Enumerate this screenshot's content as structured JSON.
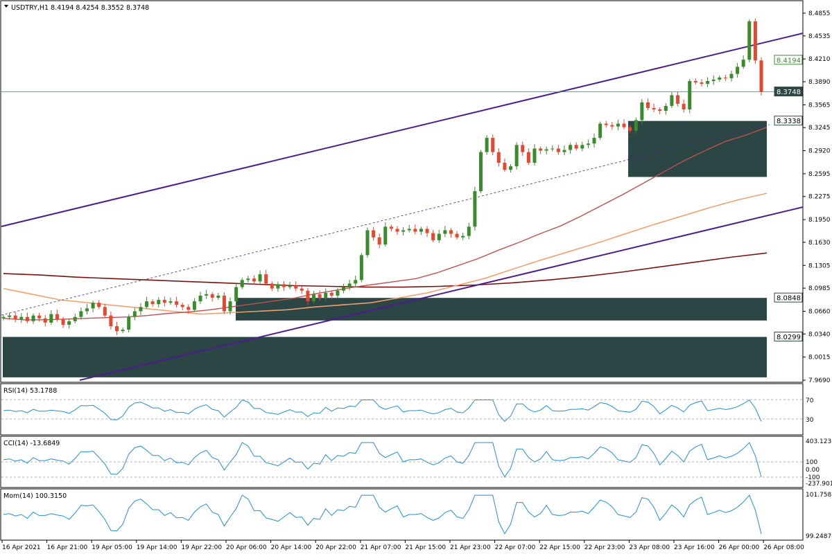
{
  "chart_data": {
    "type": "candlestick",
    "symbol": "USDTRY,H1",
    "header": {
      "open": "8.4194",
      "high": "8.4254",
      "low": "8.3552",
      "close": "8.3748"
    },
    "price_axis": {
      "ylim": [
        7.969,
        8.4855
      ],
      "ticks": [
        "8.4855",
        "8.4535",
        "8.4210",
        "8.3890",
        "8.3565",
        "8.3245",
        "8.2920",
        "8.2595",
        "8.2275",
        "8.1950",
        "8.1630",
        "8.1305",
        "8.0985",
        "8.0660",
        "8.0340",
        "8.0015",
        "7.9690"
      ]
    },
    "price_labels": [
      {
        "text": "8.4194",
        "value": 8.4194,
        "style": "green"
      },
      {
        "text": "8.3748",
        "value": 8.3748,
        "style": "dark"
      },
      {
        "text": "8.3338",
        "value": 8.3338,
        "style": "plain"
      },
      {
        "text": "8.0848",
        "value": 8.0848,
        "style": "plain"
      },
      {
        "text": "8.0299",
        "value": 8.0299,
        "style": "plain"
      }
    ],
    "time_axis": [
      "16 Apr 2021",
      "16 Apr 21:00",
      "19 Apr 05:00",
      "19 Apr 14:00",
      "19 Apr 22:00",
      "20 Apr 06:00",
      "20 Apr 14:00",
      "20 Apr 22:00",
      "21 Apr 07:00",
      "21 Apr 15:00",
      "21 Apr 23:00",
      "22 Apr 07:00",
      "22 Apr 15:00",
      "22 Apr 23:00",
      "23 Apr 08:00",
      "23 Apr 16:00",
      "26 Apr 00:00",
      "26 Apr 08:00"
    ],
    "candles_close": [
      8.058,
      8.06,
      8.055,
      8.058,
      8.052,
      8.06,
      8.056,
      8.05,
      8.062,
      8.055,
      8.047,
      8.052,
      8.058,
      8.066,
      8.07,
      8.078,
      8.072,
      8.06,
      8.045,
      8.038,
      8.04,
      8.058,
      8.066,
      8.072,
      8.08,
      8.076,
      8.082,
      8.078,
      8.08,
      8.075,
      8.072,
      8.068,
      8.08,
      8.088,
      8.09,
      8.085,
      8.088,
      8.066,
      8.08,
      8.1,
      8.11,
      8.112,
      8.108,
      8.118,
      8.105,
      8.098,
      8.104,
      8.1,
      8.102,
      8.098,
      8.095,
      8.08,
      8.09,
      8.085,
      8.092,
      8.088,
      8.095,
      8.1,
      8.105,
      8.11,
      8.145,
      8.18,
      8.17,
      8.16,
      8.185,
      8.182,
      8.178,
      8.18,
      8.182,
      8.178,
      8.182,
      8.176,
      8.166,
      8.175,
      8.18,
      8.175,
      8.17,
      8.172,
      8.185,
      8.235,
      8.29,
      8.31,
      8.29,
      8.275,
      8.265,
      8.27,
      8.3,
      8.29,
      8.275,
      8.295,
      8.292,
      8.294,
      8.295,
      8.29,
      8.293,
      8.3,
      8.295,
      8.3,
      8.302,
      8.31,
      8.33,
      8.328,
      8.326,
      8.33,
      8.325,
      8.32,
      8.335,
      8.36,
      8.352,
      8.35,
      8.348,
      8.355,
      8.37,
      8.358,
      8.35,
      8.39,
      8.388,
      8.386,
      8.39,
      8.392,
      8.395,
      8.394,
      8.4,
      8.41,
      8.42,
      8.474,
      8.419,
      8.375
    ],
    "ma_fast": [
      8.056,
      8.054,
      8.054,
      8.055,
      8.056,
      8.057,
      8.058,
      8.06,
      8.063,
      8.065,
      8.068,
      8.072,
      8.076,
      8.08,
      8.084,
      8.09,
      8.095,
      8.1,
      8.104,
      8.108,
      8.112,
      8.12,
      8.13,
      8.14,
      8.152,
      8.163,
      8.175,
      8.186,
      8.2,
      8.215,
      8.23,
      8.246,
      8.262,
      8.278,
      8.292,
      8.305,
      8.314,
      8.325
    ],
    "ma_mid": [
      8.098,
      8.09,
      8.082,
      8.078,
      8.074,
      8.07,
      8.066,
      8.062,
      8.064,
      8.066,
      8.068,
      8.072,
      8.075,
      8.078,
      8.085,
      8.092,
      8.102,
      8.112,
      8.125,
      8.138,
      8.15,
      8.162,
      8.175,
      8.188,
      8.2,
      8.212,
      8.223,
      8.232
    ],
    "ma_slow": [
      8.119,
      8.117,
      8.114,
      8.112,
      8.11,
      8.108,
      8.106,
      8.104,
      8.102,
      8.101,
      8.1,
      8.1,
      8.101,
      8.103,
      8.106,
      8.11,
      8.115,
      8.121,
      8.128,
      8.135,
      8.142,
      8.148
    ],
    "zones": [
      {
        "top": 8.3338,
        "bottom": 8.255
      },
      {
        "top": 8.0848,
        "bottom": 8.053
      },
      {
        "top": 8.0299,
        "bottom": 7.973
      }
    ],
    "indicators": [
      {
        "name": "RSI(14)",
        "value": "53.1788",
        "levels": [
          "70",
          "30"
        ]
      },
      {
        "name": "CCI(14)",
        "value": "-13.6849",
        "levels": [
          "403.1233",
          "100",
          "0.00",
          "-100",
          "-237.901"
        ]
      },
      {
        "name": "Mom(14)",
        "value": "100.3150",
        "levels": [
          "101.7588",
          "99.2487"
        ]
      }
    ],
    "colors": {
      "bull": "#3a8b2c",
      "bear": "#e8472f",
      "channel": "#4b1d8c",
      "ma_fast": "#c05050",
      "ma_mid": "#f0a070",
      "ma_slow": "#7a1010",
      "zone": "#2c4646",
      "indicator": "#1f8fd0"
    }
  }
}
